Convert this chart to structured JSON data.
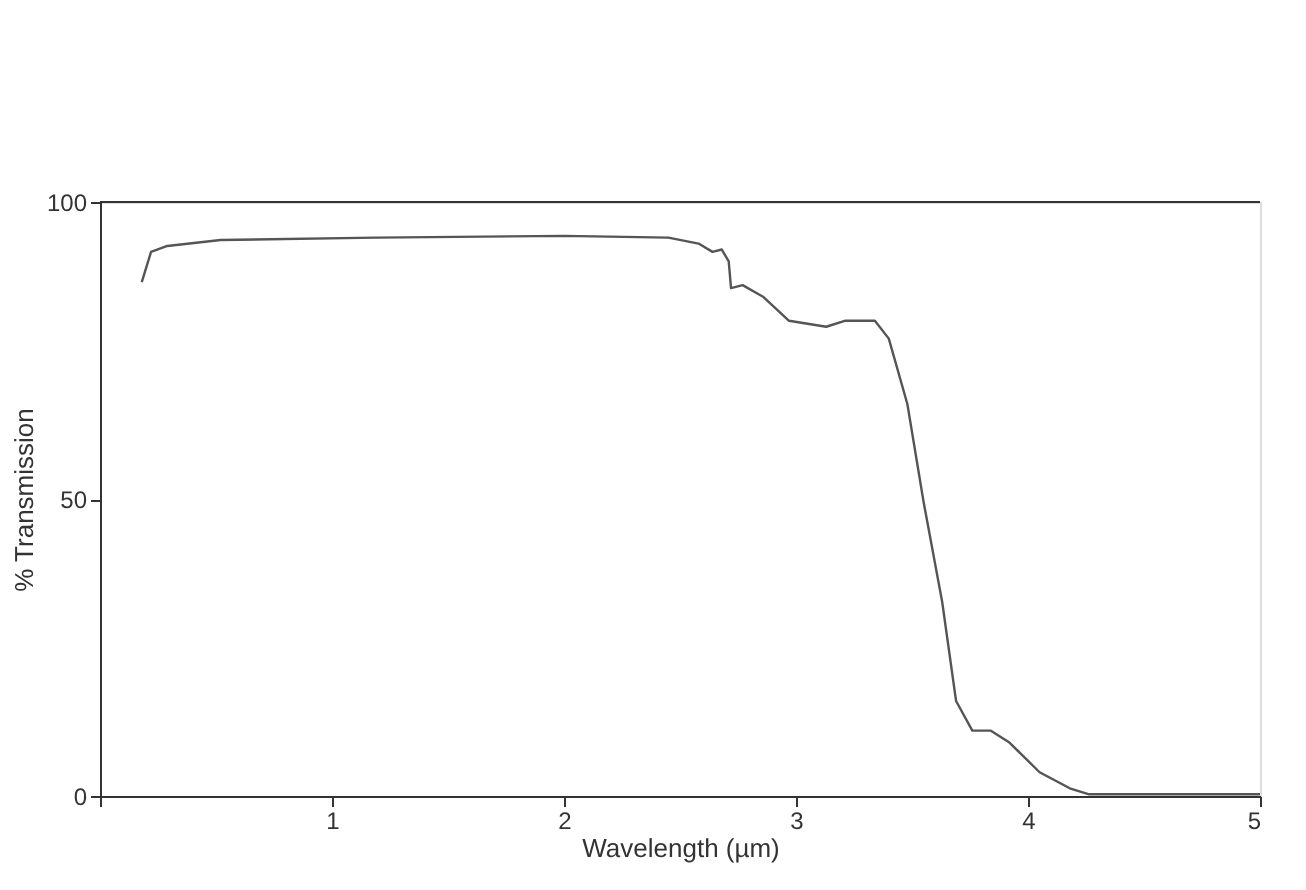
{
  "chart_data": {
    "type": "line",
    "xlabel": "Wavelength (µm)",
    "ylabel": "% Transmission",
    "x": [
      0.18,
      0.22,
      0.29,
      0.52,
      1.19,
      2.0,
      2.45,
      2.58,
      2.64,
      2.68,
      2.71,
      2.72,
      2.77,
      2.86,
      2.97,
      3.13,
      3.21,
      3.34,
      3.4,
      3.48,
      3.55,
      3.63,
      3.69,
      3.76,
      3.84,
      3.92,
      4.05,
      4.18,
      4.26,
      5.0
    ],
    "series": [
      {
        "color": "#555555",
        "values": [
          86.5,
          91.6,
          92.6,
          93.6,
          94,
          94.3,
          94,
          93,
          91.6,
          92,
          90,
          85.5,
          86,
          84,
          80,
          79,
          80,
          80,
          77,
          66,
          49.5,
          32.7,
          16,
          11,
          11,
          9,
          4,
          1.3,
          0.3,
          0.3
        ]
      }
    ],
    "xlim": [
      0,
      5
    ],
    "xticks": [
      {
        "value": 0,
        "label": null
      },
      1,
      2,
      3,
      4,
      5
    ],
    "ylim": [
      0,
      100
    ],
    "yticks": [
      0,
      50,
      100
    ],
    "grid": false,
    "marker": "none",
    "line_style": "solid"
  }
}
